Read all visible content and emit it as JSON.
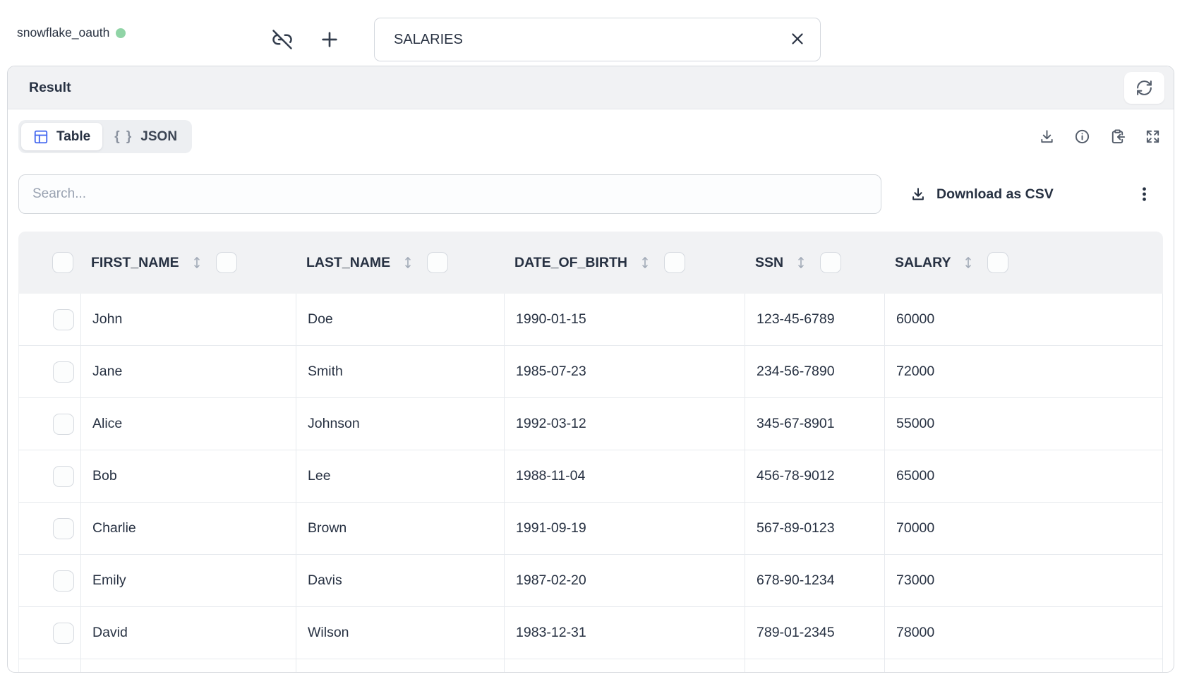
{
  "topbar": {
    "connection_name": "snowflake_oauth",
    "status_color": "#90d4a6",
    "table_input_value": "SALARIES"
  },
  "result_panel": {
    "title": "Result",
    "tabs": [
      {
        "label": "Table",
        "icon": "table-icon",
        "active": true
      },
      {
        "label": "JSON",
        "icon": "braces-icon",
        "icon_text": "{ }",
        "active": false
      }
    ],
    "search_placeholder": "Search...",
    "download_csv_label": "Download as CSV",
    "action_icons": [
      "download-icon",
      "info-icon",
      "clipboard-paste-icon",
      "expand-icon",
      "more-vertical-icon",
      "refresh-icon"
    ]
  },
  "table": {
    "columns": [
      "FIRST_NAME",
      "LAST_NAME",
      "DATE_OF_BIRTH",
      "SSN",
      "SALARY"
    ],
    "rows": [
      [
        "John",
        "Doe",
        "1990-01-15",
        "123-45-6789",
        "60000"
      ],
      [
        "Jane",
        "Smith",
        "1985-07-23",
        "234-56-7890",
        "72000"
      ],
      [
        "Alice",
        "Johnson",
        "1992-03-12",
        "345-67-8901",
        "55000"
      ],
      [
        "Bob",
        "Lee",
        "1988-11-04",
        "456-78-9012",
        "65000"
      ],
      [
        "Charlie",
        "Brown",
        "1991-09-19",
        "567-89-0123",
        "70000"
      ],
      [
        "Emily",
        "Davis",
        "1987-02-20",
        "678-90-1234",
        "73000"
      ],
      [
        "David",
        "Wilson",
        "1983-12-31",
        "789-01-2345",
        "78000"
      ]
    ]
  }
}
